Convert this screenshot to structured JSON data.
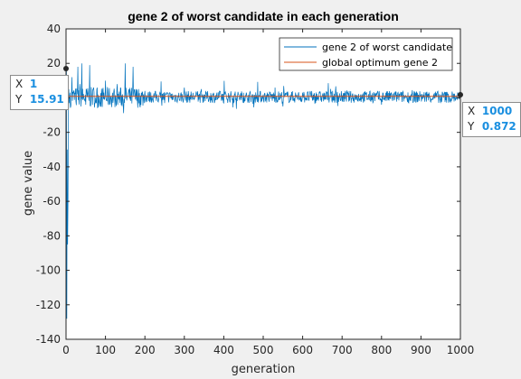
{
  "chart_data": {
    "type": "line",
    "title": "gene 2 of worst candidate in each generation",
    "xlabel": "generation",
    "ylabel": "gene value",
    "xlim": [
      0,
      1000
    ],
    "ylim": [
      -140,
      40
    ],
    "xticks": [
      0,
      100,
      200,
      300,
      400,
      500,
      600,
      700,
      800,
      900,
      1000
    ],
    "yticks": [
      -140,
      -120,
      -100,
      -80,
      -60,
      -40,
      -20,
      0,
      20,
      40
    ],
    "grid": false,
    "legend_position": "top-right",
    "series": [
      {
        "name": "gene 2 of worst candidate",
        "color": "#0072bd",
        "sampled_x": [
          1,
          2,
          3,
          4,
          5,
          6,
          7,
          8,
          10,
          12,
          15,
          20,
          25,
          30,
          35,
          40,
          50,
          60,
          70,
          80,
          100,
          130,
          150,
          160,
          170,
          200,
          250,
          300,
          350,
          400,
          450,
          500,
          550,
          600,
          650,
          700,
          750,
          800,
          850,
          900,
          950,
          1000
        ],
        "sampled_y": [
          15.91,
          -128,
          -30,
          -85,
          -60,
          -10,
          5,
          -3,
          3,
          -5,
          12,
          4,
          -2,
          18,
          8,
          20,
          -4,
          19,
          6,
          -6,
          10,
          8,
          20,
          5,
          18,
          4,
          -3,
          6,
          2,
          -3,
          3,
          2,
          -5,
          3,
          1,
          -2,
          2,
          -4,
          1,
          2,
          -3,
          0.872
        ]
      },
      {
        "name": "global optimum gene 2",
        "color": "#d95319",
        "value": 0.9
      }
    ],
    "data_tips": [
      {
        "x_label": "X",
        "x": "1",
        "y_label": "Y",
        "y": "15.91"
      },
      {
        "x_label": "X",
        "x": "1000",
        "y_label": "Y",
        "y": "0.872"
      }
    ]
  }
}
